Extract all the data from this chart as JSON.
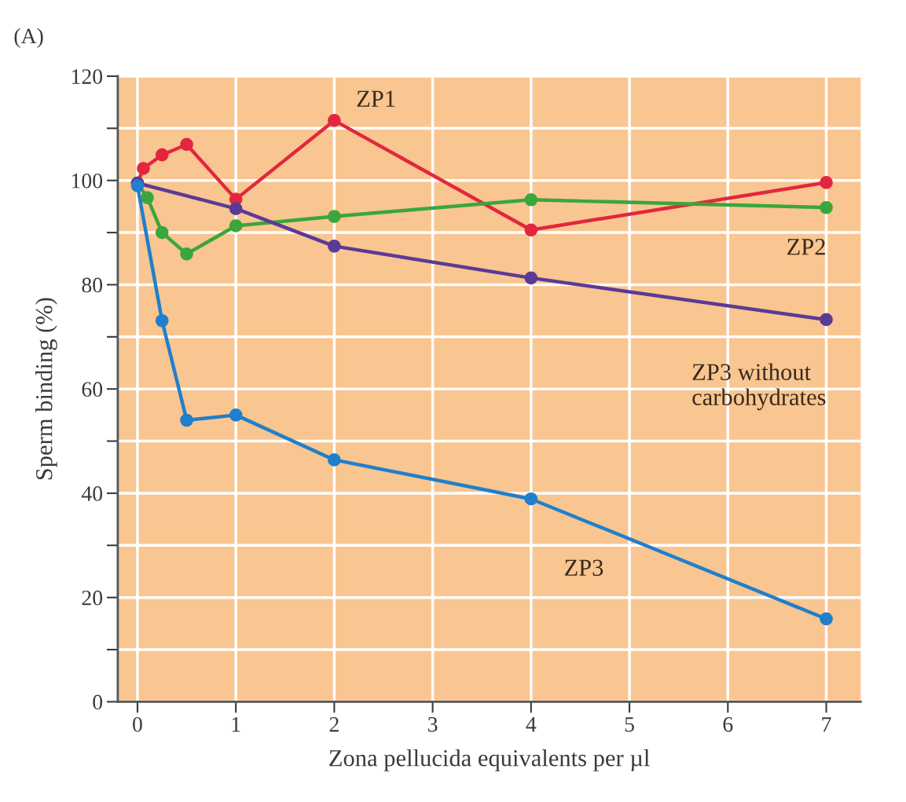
{
  "chart_data": {
    "type": "line",
    "title": "(A)",
    "xlabel": "Zona pellucida equivalents per µl",
    "ylabel": "Sperm binding (%)",
    "series": [
      {
        "name": "ZP1",
        "color": "#e3263f",
        "x": [
          0,
          0.06,
          0.25,
          0.5,
          1,
          2,
          4,
          7
        ],
        "values": [
          99.5,
          102.3,
          104.9,
          106.9,
          96.4,
          111.5,
          90.5,
          99.6
        ]
      },
      {
        "name": "ZP2",
        "color": "#3aa63c",
        "x": [
          0,
          0.1,
          0.25,
          0.5,
          1,
          2,
          4,
          7
        ],
        "values": [
          99.5,
          96.7,
          90.0,
          85.9,
          91.3,
          93.1,
          96.3,
          94.8
        ]
      },
      {
        "name": "ZP3 without\ncarbohydrates",
        "color": "#5b3a96",
        "x": [
          0,
          1,
          2,
          4,
          7
        ],
        "values": [
          99.5,
          94.6,
          87.4,
          81.3,
          73.3
        ]
      },
      {
        "name": "ZP3",
        "color": "#1f7fcc",
        "x": [
          0,
          0.25,
          0.5,
          1,
          2,
          4,
          7
        ],
        "values": [
          99.0,
          73.1,
          54.0,
          55.0,
          46.4,
          38.9,
          15.9
        ]
      }
    ],
    "xlim": [
      -0.2,
      7.35
    ],
    "ylim": [
      0,
      120
    ],
    "xticks": [
      0,
      1,
      2,
      3,
      4,
      5,
      6,
      7
    ],
    "yticks": [
      0,
      {
        "value": 10,
        "label": null
      },
      20,
      {
        "value": 30,
        "label": null
      },
      40,
      {
        "value": 50,
        "label": null
      },
      60,
      {
        "value": 70,
        "label": null
      },
      80,
      {
        "value": 90,
        "label": null
      },
      100,
      {
        "value": 110,
        "label": null
      },
      120
    ],
    "grid": true,
    "marker": "circle",
    "line_style": "solid",
    "legend": false
  }
}
